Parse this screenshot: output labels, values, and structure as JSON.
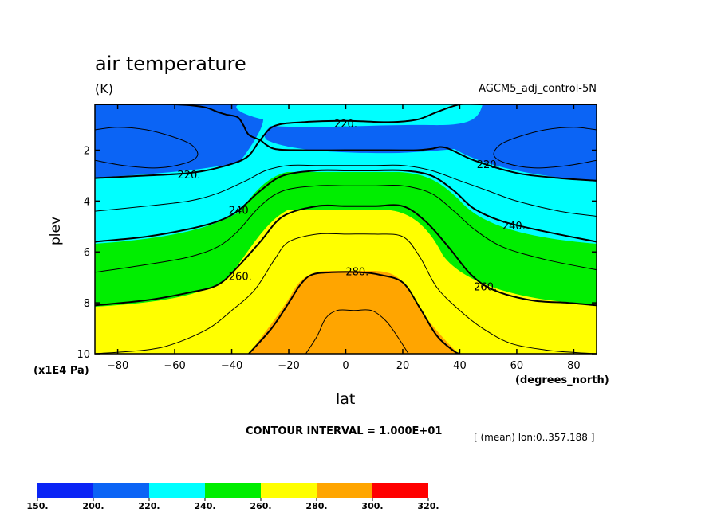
{
  "header": {
    "title": "air temperature",
    "units": "(K)",
    "dataset": "AGCM5_adj_control-5N"
  },
  "footer": {
    "contour_interval": "CONTOUR INTERVAL = 1.000E+01",
    "mean_note": "[ (mean) lon:0..357.188 ]"
  },
  "chart_data": {
    "type": "contour",
    "title": "air temperature",
    "units": "K",
    "xlabel": "lat",
    "x_units": "(degrees_north)",
    "ylabel": "plev",
    "y_units": "(x1E4 Pa)",
    "xlim": [
      -88,
      88
    ],
    "ylim": [
      10,
      0.2
    ],
    "x_ticks": [
      -80,
      -60,
      -40,
      -20,
      0,
      20,
      40,
      60,
      80
    ],
    "y_ticks": [
      2,
      4,
      6,
      8,
      10
    ],
    "y_direction": "inverted (pressure increases downward)",
    "contour_interval": 10,
    "contour_labels": [
      {
        "text": "220.",
        "lat": -55,
        "plev": 3.0
      },
      {
        "text": "220.",
        "lat": 0,
        "plev": 1.0
      },
      {
        "text": "220.",
        "lat": 50,
        "plev": 2.6
      },
      {
        "text": "240.",
        "lat": -37,
        "plev": 4.4
      },
      {
        "text": "240.",
        "lat": 59,
        "plev": 5.0
      },
      {
        "text": "260.",
        "lat": -37,
        "plev": 7.0
      },
      {
        "text": "260.",
        "lat": 49,
        "plev": 7.4
      },
      {
        "text": "280.",
        "lat": 4,
        "plev": 6.8
      }
    ],
    "isolines": [
      {
        "value": 210,
        "x": [
          -88,
          -80,
          -70,
          -60,
          -54,
          -52,
          -56,
          -66,
          -78,
          -88
        ],
        "y": [
          1.2,
          1.1,
          1.2,
          1.5,
          1.8,
          2.2,
          2.5,
          2.7,
          2.6,
          2.4
        ]
      },
      {
        "value": 210,
        "x": [
          88,
          80,
          70,
          60,
          54,
          52,
          56,
          66,
          78,
          88
        ],
        "y": [
          1.2,
          1.1,
          1.2,
          1.5,
          1.8,
          2.2,
          2.5,
          2.7,
          2.6,
          2.4
        ]
      },
      {
        "value": 220,
        "x": [
          -88,
          -70,
          -55,
          -45,
          -35,
          -30,
          -25,
          -15,
          0,
          15,
          25,
          32,
          40,
          48,
          60,
          75,
          88
        ],
        "y": [
          3.1,
          3.0,
          2.9,
          2.7,
          2.3,
          1.6,
          1.05,
          0.9,
          0.85,
          0.9,
          0.8,
          0.5,
          0.2,
          0.2,
          0.2,
          0.2,
          0.2
        ]
      },
      {
        "value": 220,
        "x": [
          -88,
          -75,
          -60,
          -50,
          -45
        ],
        "y": [
          0.2,
          0.2,
          0.2,
          0.3,
          0.5
        ]
      },
      {
        "value": 220,
        "x": [
          -45,
          -42,
          -38,
          -36,
          -34,
          -30
        ],
        "y": [
          0.5,
          0.6,
          0.7,
          1.0,
          1.4,
          1.6
        ]
      },
      {
        "value": 220,
        "x": [
          -30,
          -25,
          -15,
          0,
          15,
          25,
          30,
          35,
          45,
          60,
          75,
          88
        ],
        "y": [
          1.6,
          1.95,
          2.0,
          2.0,
          2.0,
          2.0,
          1.95,
          1.9,
          2.4,
          2.9,
          3.1,
          3.2
        ]
      },
      {
        "value": 230,
        "x": [
          -88,
          -70,
          -55,
          -45,
          -35,
          -28,
          -20,
          -10,
          0,
          10,
          20,
          30,
          40,
          50,
          60,
          75,
          88
        ],
        "y": [
          4.4,
          4.2,
          4.0,
          3.7,
          3.2,
          2.8,
          2.6,
          2.6,
          2.6,
          2.6,
          2.6,
          2.8,
          3.2,
          3.6,
          4.0,
          4.4,
          4.6
        ]
      },
      {
        "value": 240,
        "x": [
          -88,
          -70,
          -55,
          -45,
          -38,
          -30,
          -22,
          -10,
          0,
          10,
          20,
          30,
          38,
          45,
          55,
          70,
          88
        ],
        "y": [
          5.6,
          5.4,
          5.1,
          4.8,
          4.4,
          3.6,
          3.0,
          2.8,
          2.8,
          2.8,
          2.8,
          3.0,
          3.6,
          4.3,
          4.8,
          5.2,
          5.6
        ]
      },
      {
        "value": 250,
        "x": [
          -88,
          -70,
          -55,
          -45,
          -38,
          -30,
          -22,
          -10,
          0,
          10,
          20,
          30,
          38,
          45,
          55,
          70,
          88
        ],
        "y": [
          6.8,
          6.5,
          6.2,
          5.8,
          5.2,
          4.2,
          3.6,
          3.4,
          3.4,
          3.4,
          3.4,
          3.7,
          4.4,
          5.1,
          5.8,
          6.3,
          6.7
        ]
      },
      {
        "value": 260,
        "x": [
          -88,
          -70,
          -55,
          -45,
          -38,
          -30,
          -22,
          -10,
          0,
          10,
          20,
          28,
          36,
          44,
          52,
          65,
          78,
          88
        ],
        "y": [
          8.1,
          7.9,
          7.6,
          7.3,
          6.6,
          5.6,
          4.6,
          4.2,
          4.2,
          4.2,
          4.2,
          4.8,
          5.8,
          6.9,
          7.5,
          7.9,
          8.0,
          8.1
        ]
      },
      {
        "value": 270,
        "x": [
          -88,
          -70,
          -60,
          -48,
          -40,
          -32,
          -25,
          -20,
          -10,
          0,
          10,
          20,
          26,
          32,
          40,
          48,
          58,
          70,
          80,
          88
        ],
        "y": [
          10.0,
          9.85,
          9.6,
          9.0,
          8.3,
          7.5,
          6.3,
          5.6,
          5.3,
          5.3,
          5.3,
          5.4,
          6.2,
          7.4,
          8.3,
          9.0,
          9.6,
          9.85,
          9.95,
          10.0
        ]
      },
      {
        "value": 280,
        "x": [
          -34,
          -26,
          -20,
          -16,
          -12,
          -5,
          5,
          12,
          20,
          26,
          32,
          38,
          40
        ],
        "y": [
          10.0,
          9.0,
          8.0,
          7.3,
          6.9,
          6.8,
          6.8,
          6.9,
          7.2,
          8.2,
          9.3,
          9.9,
          10.0
        ]
      },
      {
        "value": 290,
        "x": [
          -14,
          -10,
          -7,
          -3,
          3,
          9,
          14,
          18,
          22
        ],
        "y": [
          10.0,
          9.3,
          8.6,
          8.3,
          8.3,
          8.3,
          8.7,
          9.3,
          10.0
        ]
      }
    ],
    "color_bar": {
      "levels": [
        "150.",
        "200.",
        "220.",
        "240.",
        "260.",
        "280.",
        "300.",
        "320."
      ],
      "colors": [
        "#0a24f5",
        "#0b64f5",
        "#00ffff",
        "#00ee00",
        "#ffff00",
        "#ffa500",
        "#ff0000"
      ]
    }
  }
}
